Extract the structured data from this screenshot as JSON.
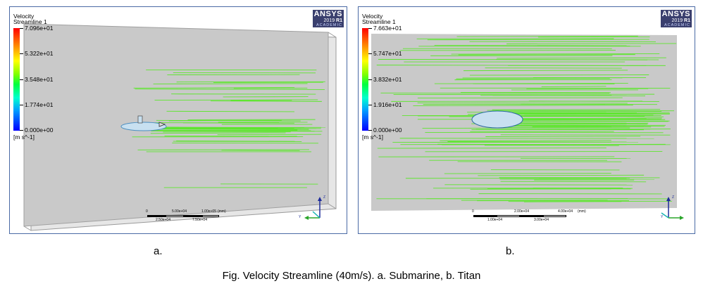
{
  "panels": [
    {
      "legend": {
        "title1": "Velocity",
        "title2": "Streamline 1",
        "max": "7.096e+01",
        "v2": "5.322e+01",
        "v3": "3.548e+01",
        "v4": "1.774e+01",
        "min": "0.000e+00",
        "unit": "[m s^-1]"
      },
      "logo": {
        "name": "ANSYS",
        "version": "2019",
        "release": "R1",
        "edition": "ACADEMIC"
      },
      "scale": {
        "zero": "0",
        "top_mid": "5.00e+04",
        "top_end": "1.00e+05",
        "unit": "(mm)",
        "bot_1": "2.50e+04",
        "bot_2": "7.50e+04"
      },
      "axes": {
        "z": "Z",
        "y": "Y"
      },
      "label": "a."
    },
    {
      "legend": {
        "title1": "Velocity",
        "title2": "Streamline 1",
        "max": "7.663e+01",
        "v2": "5.747e+01",
        "v3": "3.832e+01",
        "v4": "1.916e+01",
        "min": "0.000e+00",
        "unit": "[m s^-1]"
      },
      "logo": {
        "name": "ANSYS",
        "version": "2019",
        "release": "R1",
        "edition": "ACADEMIC"
      },
      "scale": {
        "zero": "0",
        "top_mid": "2.00e+04",
        "top_end": "4.00e+04",
        "unit": "(mm)",
        "bot_1": "1.00e+04",
        "bot_2": "3.00e+04"
      },
      "axes": {
        "z": "Z",
        "y": "Y"
      },
      "label": "b."
    }
  ],
  "caption": "Fig. Velocity Streamline (40m/s). a. Submarine, b. Titan",
  "colors": {
    "streamline": "#5ee62e",
    "domain": "#c9c9c9",
    "body": "#c8e0f0",
    "frame_border": "#4a6aa5"
  }
}
